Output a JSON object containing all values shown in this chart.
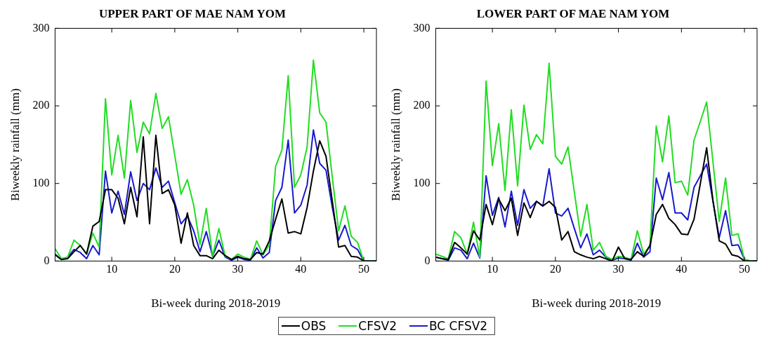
{
  "chart_data": [
    {
      "type": "line",
      "title": "UPPER PART OF MAE NAM YOM",
      "xlabel": "Bi-week during 2018-2019",
      "ylabel": "Biweekly rainfall (mm)",
      "x": [
        1,
        2,
        3,
        4,
        5,
        6,
        7,
        8,
        9,
        10,
        11,
        12,
        13,
        14,
        15,
        16,
        17,
        18,
        19,
        20,
        21,
        22,
        23,
        24,
        25,
        26,
        27,
        28,
        29,
        30,
        31,
        32,
        33,
        34,
        35,
        36,
        37,
        38,
        39,
        40,
        41,
        42,
        43,
        44,
        45,
        46,
        47,
        48,
        49,
        50,
        51,
        52
      ],
      "xlim": [
        1,
        52
      ],
      "xticks": [
        10,
        20,
        30,
        40,
        50
      ],
      "ylim": [
        0,
        300
      ],
      "yticks": [
        0,
        100,
        200,
        300
      ],
      "grid": false,
      "legend": "bottom",
      "marker": "none",
      "line_style": "solid",
      "series": [
        {
          "name": "OBS",
          "color": "#000000",
          "values": [
            8,
            2,
            3,
            12,
            20,
            9,
            45,
            51,
            92,
            92,
            81,
            48,
            95,
            57,
            160,
            48,
            162,
            87,
            92,
            72,
            23,
            62,
            20,
            7,
            7,
            3,
            14,
            7,
            2,
            6,
            3,
            2,
            11,
            9,
            26,
            54,
            80,
            36,
            38,
            35,
            69,
            116,
            155,
            135,
            77,
            18,
            20,
            6,
            5,
            0,
            0,
            0
          ]
        },
        {
          "name": "CFSV2",
          "color": "#22dd22",
          "values": [
            16,
            3,
            5,
            27,
            20,
            9,
            36,
            18,
            209,
            111,
            162,
            107,
            207,
            140,
            179,
            164,
            216,
            171,
            186,
            136,
            86,
            105,
            72,
            21,
            68,
            6,
            42,
            6,
            2,
            9,
            5,
            2,
            26,
            8,
            21,
            122,
            143,
            239,
            95,
            111,
            147,
            259,
            191,
            179,
            108,
            39,
            71,
            32,
            24,
            0,
            0,
            0
          ]
        },
        {
          "name": "BC CFSV2",
          "color": "#1a1acc",
          "values": [
            9,
            2,
            5,
            15,
            11,
            3,
            20,
            8,
            116,
            62,
            90,
            60,
            115,
            78,
            100,
            92,
            120,
            95,
            103,
            75,
            48,
            58,
            39,
            12,
            38,
            6,
            27,
            5,
            1,
            5,
            2,
            1,
            17,
            4,
            11,
            78,
            95,
            156,
            62,
            72,
            98,
            169,
            126,
            117,
            69,
            27,
            46,
            20,
            15,
            0,
            0,
            0
          ]
        }
      ]
    },
    {
      "type": "line",
      "title": "LOWER PART OF MAE NAM YOM",
      "xlabel": "Bi-week during 2018-2019",
      "ylabel": "Biweekly rainfall (mm)",
      "x": [
        1,
        2,
        3,
        4,
        5,
        6,
        7,
        8,
        9,
        10,
        11,
        12,
        13,
        14,
        15,
        16,
        17,
        18,
        19,
        20,
        21,
        22,
        23,
        24,
        25,
        26,
        27,
        28,
        29,
        30,
        31,
        32,
        33,
        34,
        35,
        36,
        37,
        38,
        39,
        40,
        41,
        42,
        43,
        44,
        45,
        46,
        47,
        48,
        49,
        50,
        51,
        52
      ],
      "xlim": [
        1,
        52
      ],
      "xticks": [
        10,
        20,
        30,
        40,
        50
      ],
      "ylim": [
        0,
        300
      ],
      "yticks": [
        0,
        100,
        200,
        300
      ],
      "grid": false,
      "marker": "none",
      "line_style": "solid",
      "series": [
        {
          "color": "#000000",
          "values": [
            5,
            3,
            2,
            24,
            17,
            9,
            39,
            27,
            73,
            47,
            80,
            65,
            81,
            33,
            75,
            56,
            77,
            71,
            77,
            69,
            27,
            38,
            12,
            8,
            5,
            3,
            6,
            3,
            0,
            18,
            3,
            2,
            12,
            6,
            20,
            60,
            73,
            55,
            47,
            35,
            34,
            54,
            100,
            146,
            78,
            26,
            22,
            8,
            6,
            0,
            0,
            0
          ]
        },
        {
          "color": "#22dd22",
          "values": [
            9,
            6,
            3,
            38,
            30,
            9,
            50,
            5,
            232,
            123,
            177,
            91,
            195,
            97,
            201,
            144,
            163,
            151,
            255,
            135,
            125,
            147,
            89,
            32,
            73,
            14,
            24,
            6,
            2,
            6,
            5,
            2,
            39,
            9,
            20,
            174,
            128,
            187,
            101,
            103,
            85,
            156,
            180,
            205,
            128,
            51,
            107,
            33,
            35,
            2,
            0,
            0
          ]
        },
        {
          "color": "#1a1acc",
          "values": [
            5,
            3,
            1,
            17,
            14,
            3,
            23,
            4,
            110,
            59,
            82,
            44,
            90,
            46,
            92,
            68,
            77,
            71,
            119,
            62,
            58,
            68,
            42,
            17,
            35,
            8,
            14,
            5,
            1,
            4,
            3,
            1,
            23,
            5,
            12,
            107,
            79,
            114,
            62,
            62,
            53,
            95,
            110,
            125,
            77,
            30,
            65,
            20,
            21,
            2,
            0,
            0
          ]
        }
      ]
    }
  ]
}
